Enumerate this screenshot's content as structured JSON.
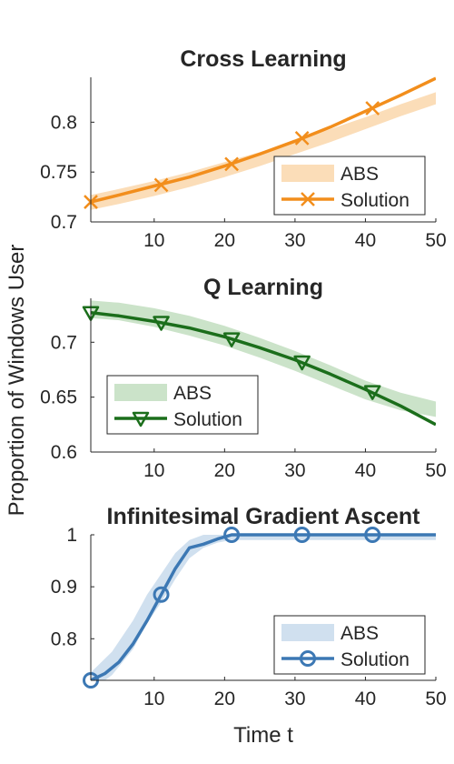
{
  "figure": {
    "ylabel": "Proportion of Windows User",
    "xlabel": "Time t"
  },
  "chart_data": [
    {
      "type": "line",
      "title": "Cross Learning",
      "xlabel": "",
      "ylabel": "",
      "xlim": [
        1,
        50
      ],
      "ylim": [
        0.7,
        0.845
      ],
      "xticks": [
        10,
        20,
        30,
        40,
        50
      ],
      "yticks": [
        0.7,
        0.75,
        0.8
      ],
      "ytick_labels": [
        "0.7",
        "0.75",
        "0.8"
      ],
      "grid": false,
      "legend": {
        "position": "bottom-right",
        "entries": [
          "ABS",
          "Solution"
        ]
      },
      "colors": {
        "line": "#F28E1C",
        "band": "#FBDDB8"
      },
      "series": [
        {
          "name": "ABS",
          "style": "band",
          "x": [
            1,
            5,
            10,
            15,
            20,
            25,
            30,
            35,
            40,
            45,
            50
          ],
          "lower": [
            0.712,
            0.718,
            0.726,
            0.735,
            0.745,
            0.756,
            0.768,
            0.78,
            0.793,
            0.806,
            0.818
          ],
          "upper": [
            0.727,
            0.733,
            0.741,
            0.75,
            0.76,
            0.77,
            0.781,
            0.793,
            0.805,
            0.818,
            0.83
          ]
        },
        {
          "name": "Solution",
          "style": "line",
          "marker": "x",
          "x": [
            1,
            5,
            10,
            15,
            20,
            25,
            30,
            35,
            40,
            45,
            50
          ],
          "y": [
            0.72,
            0.727,
            0.736,
            0.745,
            0.756,
            0.768,
            0.781,
            0.795,
            0.811,
            0.827,
            0.844
          ],
          "marker_x": [
            1,
            11,
            21,
            31,
            41
          ],
          "marker_y": [
            0.72,
            0.737,
            0.758,
            0.784,
            0.814
          ]
        }
      ]
    },
    {
      "type": "line",
      "title": "Q Learning",
      "xlabel": "",
      "ylabel": "",
      "xlim": [
        1,
        50
      ],
      "ylim": [
        0.6,
        0.74
      ],
      "xticks": [
        10,
        20,
        30,
        40,
        50
      ],
      "yticks": [
        0.6,
        0.65,
        0.7
      ],
      "ytick_labels": [
        "0.6",
        "0.65",
        "0.7"
      ],
      "grid": false,
      "legend": {
        "position": "bottom-left",
        "entries": [
          "ABS",
          "Solution"
        ]
      },
      "colors": {
        "line": "#1B6E1B",
        "band": "#CBE3C9"
      },
      "series": [
        {
          "name": "ABS",
          "style": "band",
          "x": [
            1,
            5,
            10,
            15,
            20,
            25,
            30,
            35,
            40,
            45,
            50
          ],
          "lower": [
            0.722,
            0.72,
            0.714,
            0.706,
            0.697,
            0.686,
            0.674,
            0.661,
            0.648,
            0.638,
            0.632
          ],
          "upper": [
            0.738,
            0.736,
            0.731,
            0.724,
            0.715,
            0.704,
            0.692,
            0.679,
            0.665,
            0.654,
            0.646
          ]
        },
        {
          "name": "Solution",
          "style": "line",
          "marker": "triangle-down",
          "x": [
            1,
            5,
            10,
            15,
            20,
            25,
            30,
            35,
            40,
            45,
            50
          ],
          "y": [
            0.727,
            0.724,
            0.719,
            0.713,
            0.705,
            0.695,
            0.684,
            0.671,
            0.657,
            0.642,
            0.625
          ],
          "marker_x": [
            1,
            11,
            21,
            31,
            41
          ],
          "marker_y": [
            0.727,
            0.718,
            0.703,
            0.682,
            0.655
          ]
        }
      ]
    },
    {
      "type": "line",
      "title": "Infinitesimal Gradient Ascent",
      "xlabel": "Time t",
      "ylabel": "",
      "xlim": [
        1,
        50
      ],
      "ylim": [
        0.72,
        1.0
      ],
      "xticks": [
        10,
        20,
        30,
        40,
        50
      ],
      "yticks": [
        0.8,
        0.9,
        1.0
      ],
      "ytick_labels": [
        "0.8",
        "0.9",
        "1"
      ],
      "grid": false,
      "legend": {
        "position": "bottom-right",
        "entries": [
          "ABS",
          "Solution"
        ]
      },
      "colors": {
        "line": "#3C78B4",
        "band": "#D0E0EF"
      },
      "series": [
        {
          "name": "ABS",
          "style": "band",
          "x": [
            1,
            4,
            7,
            9,
            11,
            13,
            15,
            17,
            19,
            21,
            25,
            30,
            40,
            50
          ],
          "lower": [
            0.7,
            0.73,
            0.78,
            0.83,
            0.87,
            0.915,
            0.955,
            0.975,
            0.985,
            0.99,
            0.99,
            0.99,
            0.99,
            0.99
          ],
          "upper": [
            0.735,
            0.775,
            0.835,
            0.885,
            0.925,
            0.965,
            0.99,
            1.0,
            1.0,
            1.0,
            1.0,
            1.0,
            1.0,
            1.0
          ]
        },
        {
          "name": "Solution",
          "style": "line",
          "marker": "circle",
          "x": [
            1,
            3,
            5,
            7,
            9,
            11,
            13,
            15,
            17,
            19,
            21,
            30,
            40,
            50
          ],
          "y": [
            0.72,
            0.733,
            0.755,
            0.79,
            0.835,
            0.885,
            0.935,
            0.975,
            0.982,
            0.992,
            1.0,
            1.0,
            1.0,
            1.0
          ],
          "marker_x": [
            1,
            11,
            21,
            31,
            41
          ],
          "marker_y": [
            0.72,
            0.885,
            1.0,
            1.0,
            1.0
          ]
        }
      ]
    }
  ]
}
